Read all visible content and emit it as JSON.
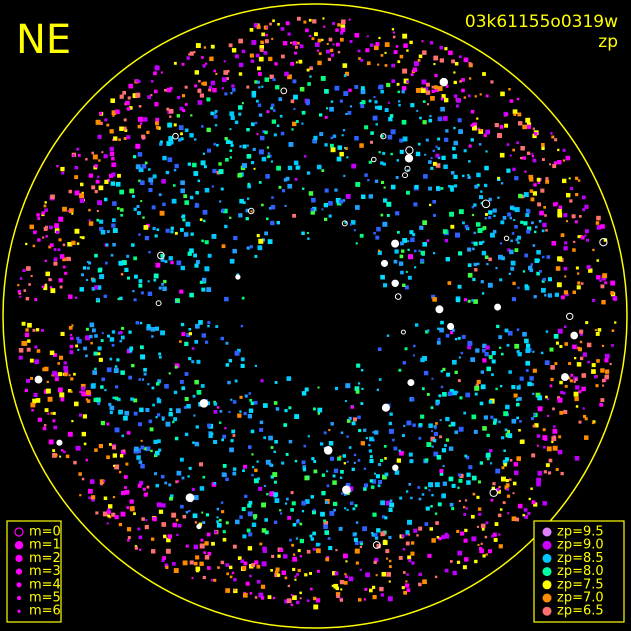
{
  "header": {
    "camera": "NE",
    "frame_id": "03k61155o0319w",
    "color_key": "zp"
  },
  "magnitude_legend": {
    "items": [
      "m=0",
      "m=1",
      "m=2",
      "m=3",
      "m=4",
      "m=5",
      "m=6"
    ]
  },
  "zp_legend": {
    "items": [
      {
        "label": "zp=9.5",
        "color": "#e080ff"
      },
      {
        "label": "zp=9.0",
        "color": "#d000ff"
      },
      {
        "label": "zp=8.5",
        "color": "#00c8ff"
      },
      {
        "label": "zp=8.0",
        "color": "#00ffa0"
      },
      {
        "label": "zp=7.5",
        "color": "#ffff00"
      },
      {
        "label": "zp=7.0",
        "color": "#ff8c00"
      },
      {
        "label": "zp=6.5",
        "color": "#ff7070"
      }
    ]
  }
}
